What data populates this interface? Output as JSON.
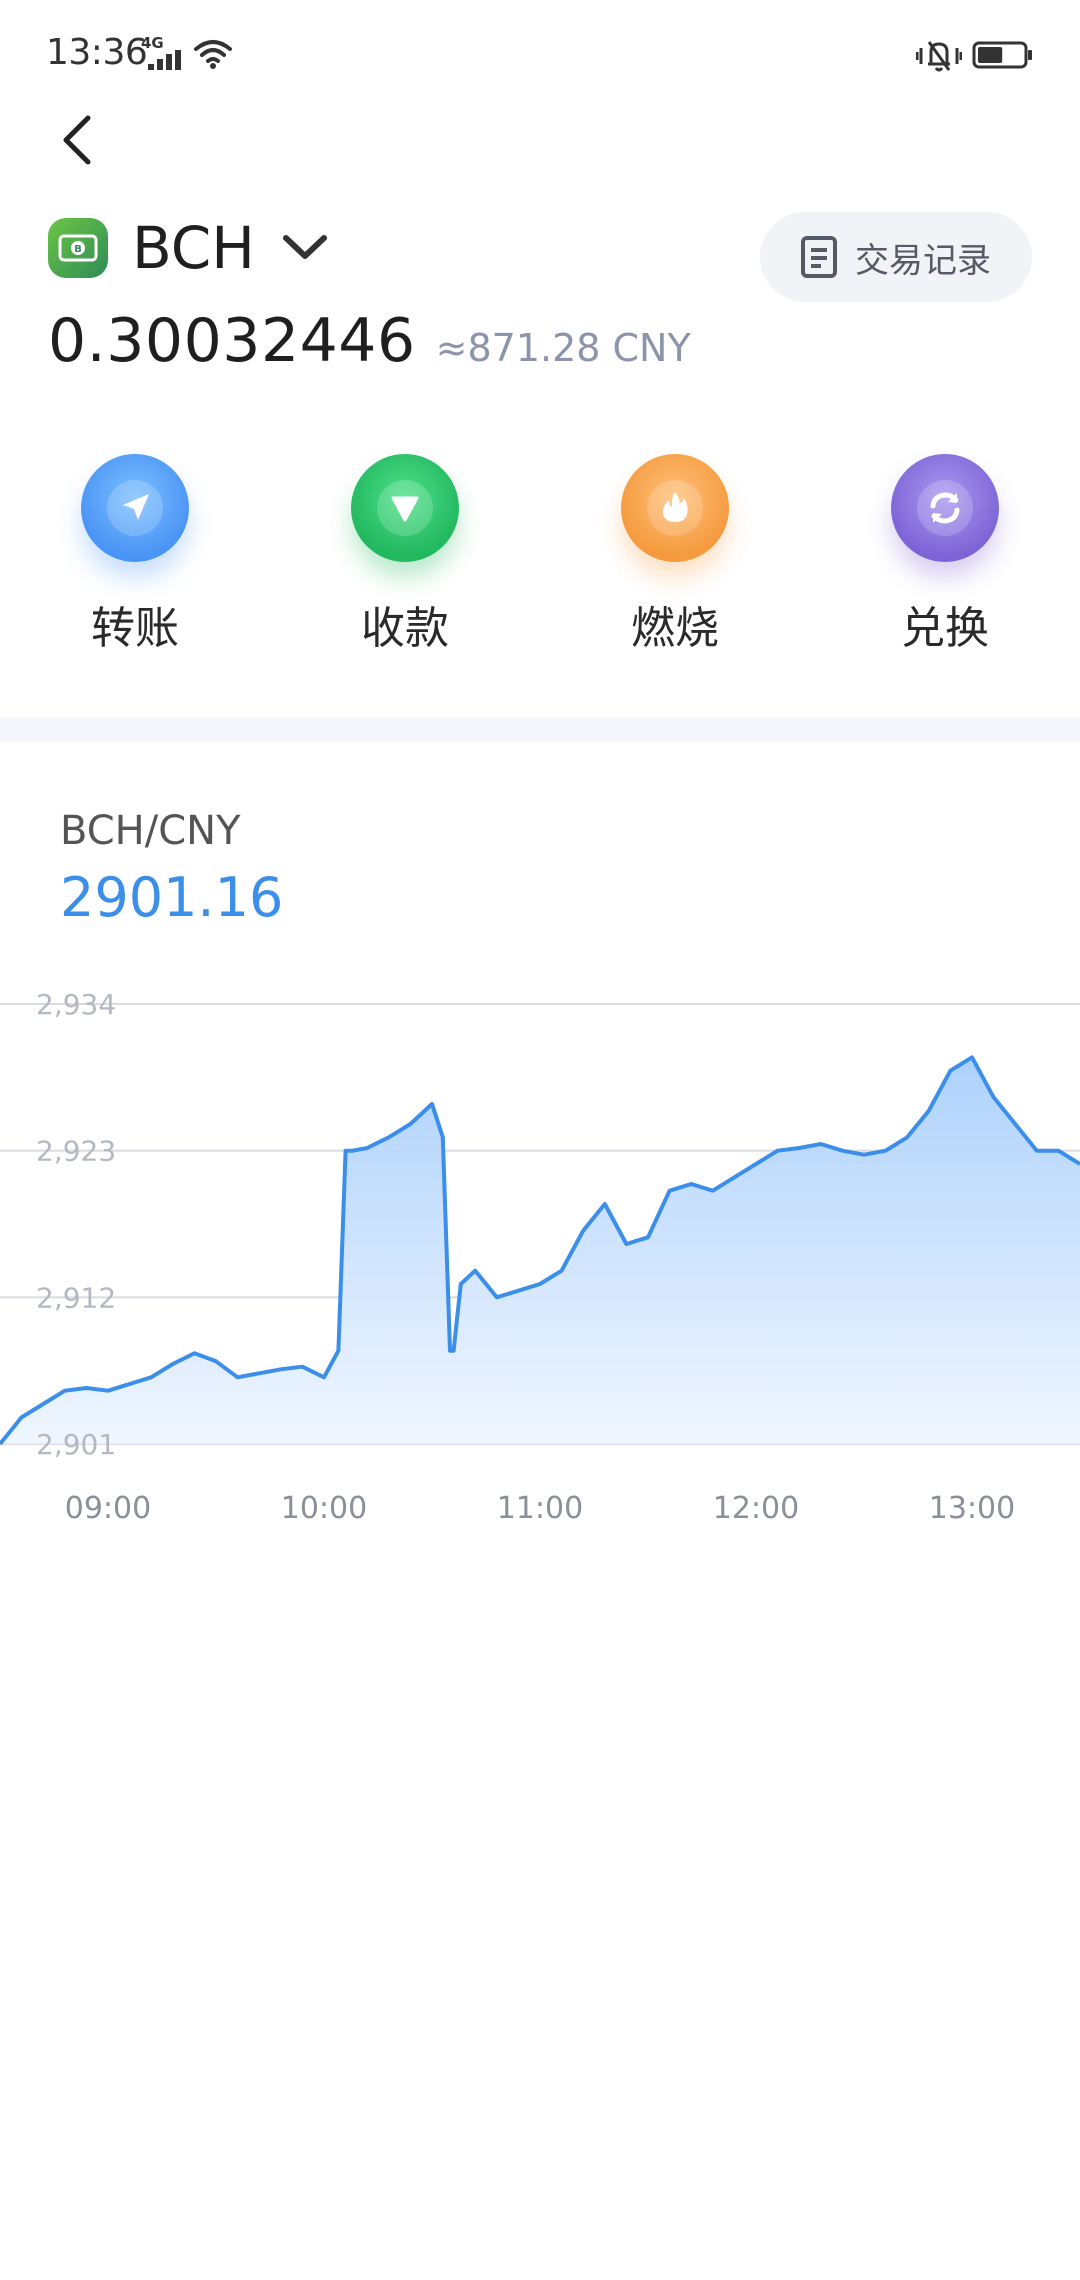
{
  "status_bar": {
    "time": "13:36",
    "network": "4G",
    "icons": [
      "signal-icon",
      "wifi-icon",
      "vibrate-icon",
      "battery-icon"
    ],
    "battery_level": 0.55
  },
  "header": {
    "back_icon": "chevron-left-icon",
    "coin_name": "BCH",
    "coin_logo_color": "#4cae4c",
    "tx_record_label": "交易记录",
    "balance": "0.30032446",
    "balance_fiat": "≈871.28 CNY"
  },
  "actions": [
    {
      "label": "转账",
      "icon": "send-arrow-icon",
      "color": "#4a94f5"
    },
    {
      "label": "收款",
      "icon": "receive-arrow-icon",
      "color": "#22b85e"
    },
    {
      "label": "燃烧",
      "icon": "flame-icon",
      "color": "#f59a3e"
    },
    {
      "label": "兑换",
      "icon": "exchange-icon",
      "color": "#7d64d6"
    }
  ],
  "market": {
    "pair": "BCH/CNY",
    "price": "2901.16"
  },
  "chart_data": {
    "type": "area",
    "title": "",
    "xlabel": "",
    "ylabel": "",
    "x_ticks": [
      "09:00",
      "10:00",
      "11:00",
      "12:00",
      "13:00"
    ],
    "y_ticks": [
      "2,934",
      "2,923",
      "2,912",
      "2,901"
    ],
    "ylim": [
      2901,
      2934
    ],
    "xlim": [
      "08:30",
      "13:30"
    ],
    "grid": true,
    "line_color": "#3b8eea",
    "series": [
      {
        "x": [
          "08:30",
          "08:36",
          "08:42",
          "08:48",
          "08:54",
          "09:00",
          "09:06",
          "09:12",
          "09:18",
          "09:24",
          "09:30",
          "09:36",
          "09:42",
          "09:48",
          "09:54",
          "10:00",
          "10:04",
          "10:06",
          "10:08",
          "10:12",
          "10:18",
          "10:24",
          "10:30",
          "10:33",
          "10:35",
          "10:36",
          "10:38",
          "10:42",
          "10:48",
          "10:54",
          "11:00",
          "11:06",
          "11:12",
          "11:18",
          "11:24",
          "11:30",
          "11:36",
          "11:42",
          "11:48",
          "11:54",
          "12:00",
          "12:06",
          "12:12",
          "12:18",
          "12:24",
          "12:30",
          "12:36",
          "12:42",
          "12:48",
          "12:54",
          "13:00",
          "13:06",
          "13:12",
          "13:18",
          "13:24",
          "13:30"
        ],
        "values": [
          2901,
          2903,
          2904,
          2905,
          2905.2,
          2905,
          2905.5,
          2906,
          2907,
          2907.8,
          2907.2,
          2906,
          2906.3,
          2906.6,
          2906.8,
          2906,
          2908,
          2923,
          2923,
          2923.2,
          2924,
          2925,
          2926.5,
          2924,
          2908,
          2908,
          2913,
          2914,
          2912,
          2912.5,
          2913,
          2914,
          2917,
          2919,
          2916,
          2916.5,
          2920,
          2920.5,
          2920,
          2921,
          2922,
          2923,
          2923.2,
          2923.5,
          2923,
          2922.7,
          2923,
          2924,
          2926,
          2929,
          2930,
          2927,
          2925,
          2923,
          2923,
          2922
        ]
      }
    ]
  }
}
